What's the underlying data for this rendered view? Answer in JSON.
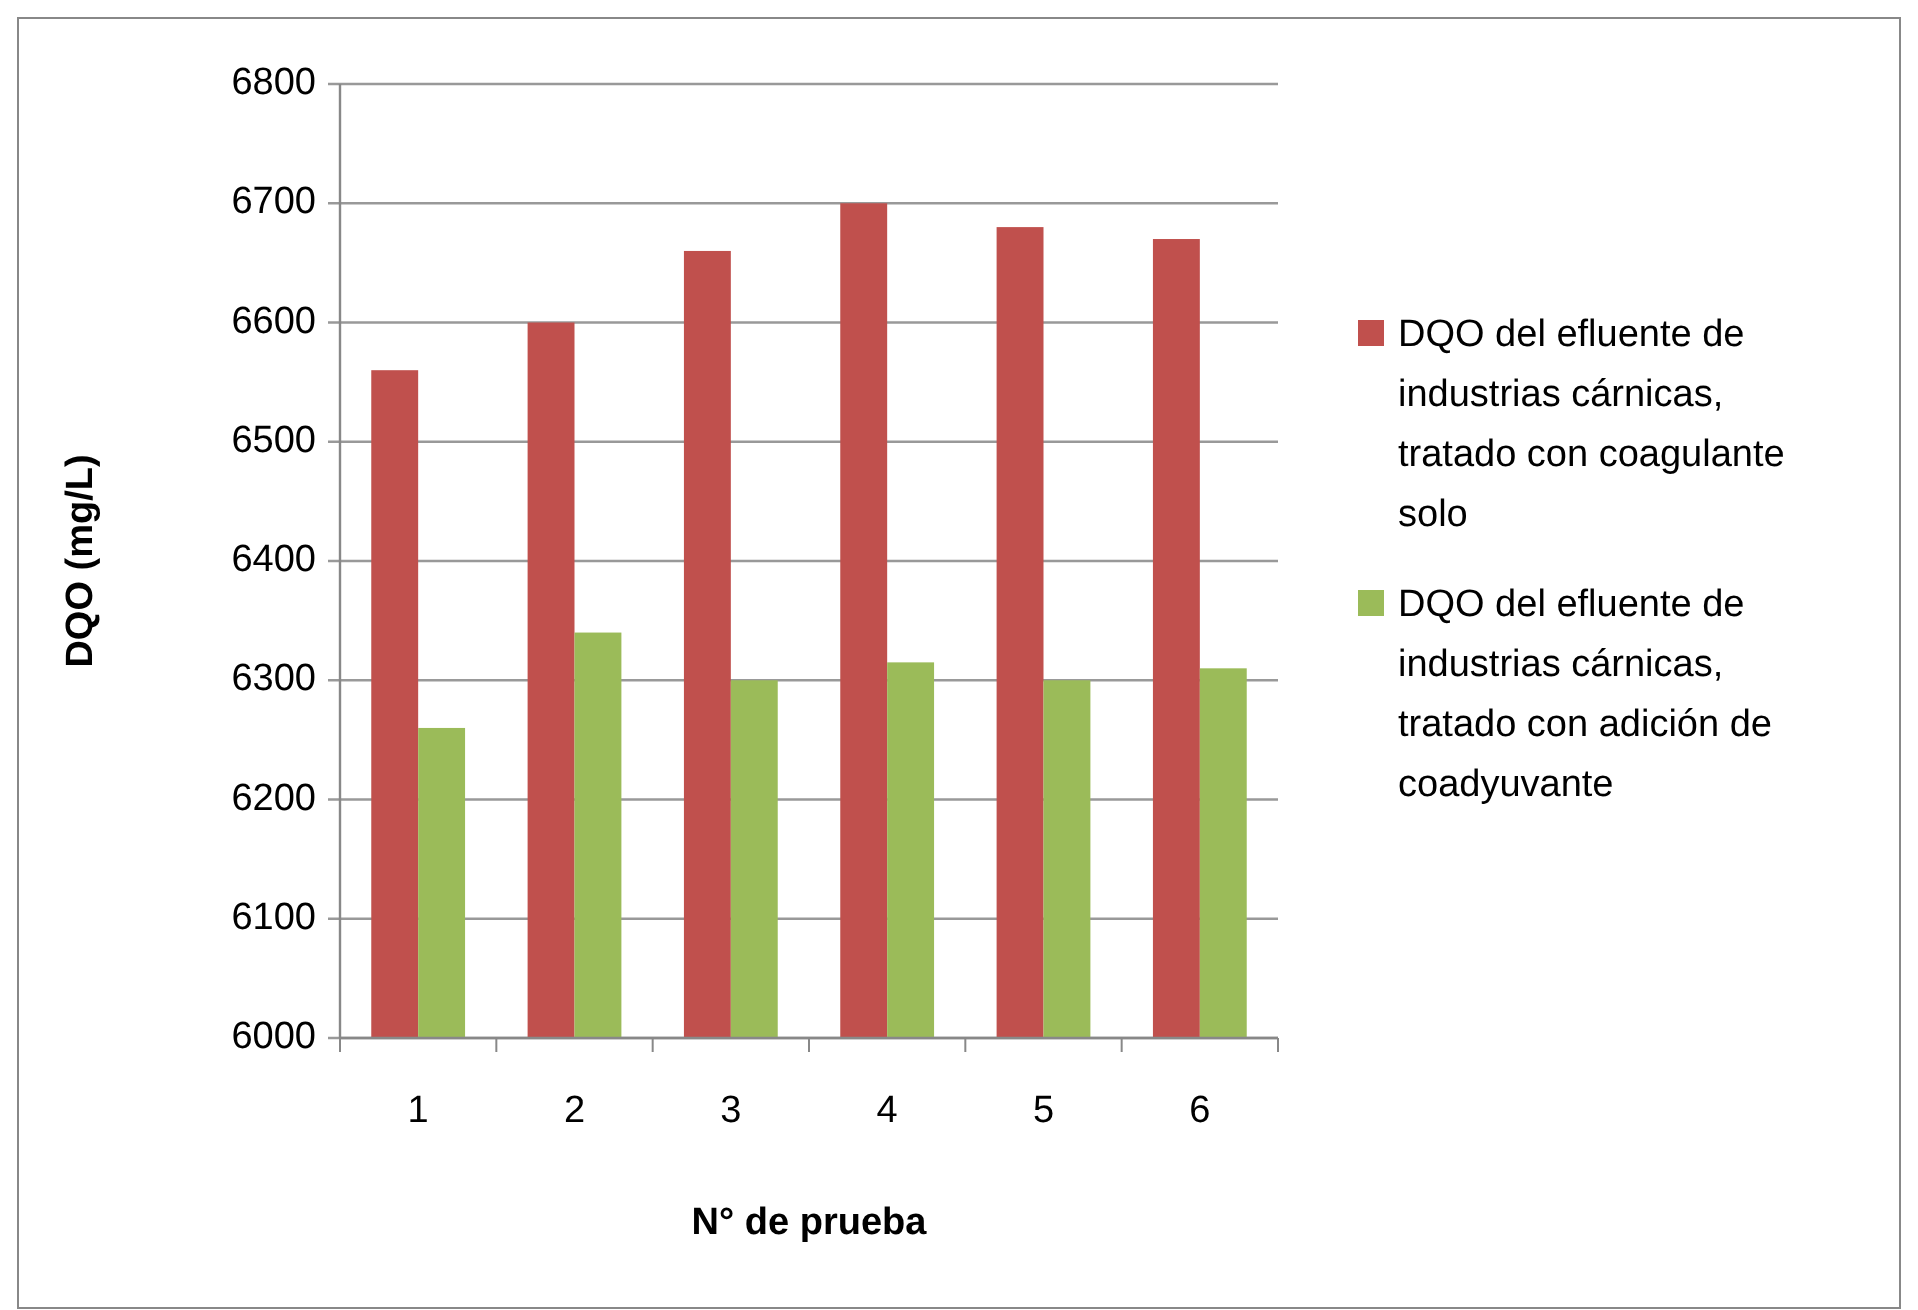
{
  "chart_data": {
    "type": "bar",
    "xlabel": "N° de prueba",
    "ylabel": "DQO (mg/L)",
    "categories": [
      "1",
      "2",
      "3",
      "4",
      "5",
      "6"
    ],
    "series": [
      {
        "name": "DQO del efluente de industrias cárnicas, tratado con coagulante solo",
        "color": "#c0504d",
        "values": [
          6560,
          6600,
          6660,
          6700,
          6680,
          6670
        ]
      },
      {
        "name": "DQO del efluente de industrias cárnicas, tratado con adición de coadyuvante",
        "color": "#9bbb59",
        "values": [
          6260,
          6340,
          6300,
          6315,
          6300,
          6310
        ]
      }
    ],
    "ylim": [
      6000,
      6800
    ],
    "yticks": [
      6000,
      6100,
      6200,
      6300,
      6400,
      6500,
      6600,
      6700,
      6800
    ],
    "grid": "y",
    "legend": "right"
  }
}
